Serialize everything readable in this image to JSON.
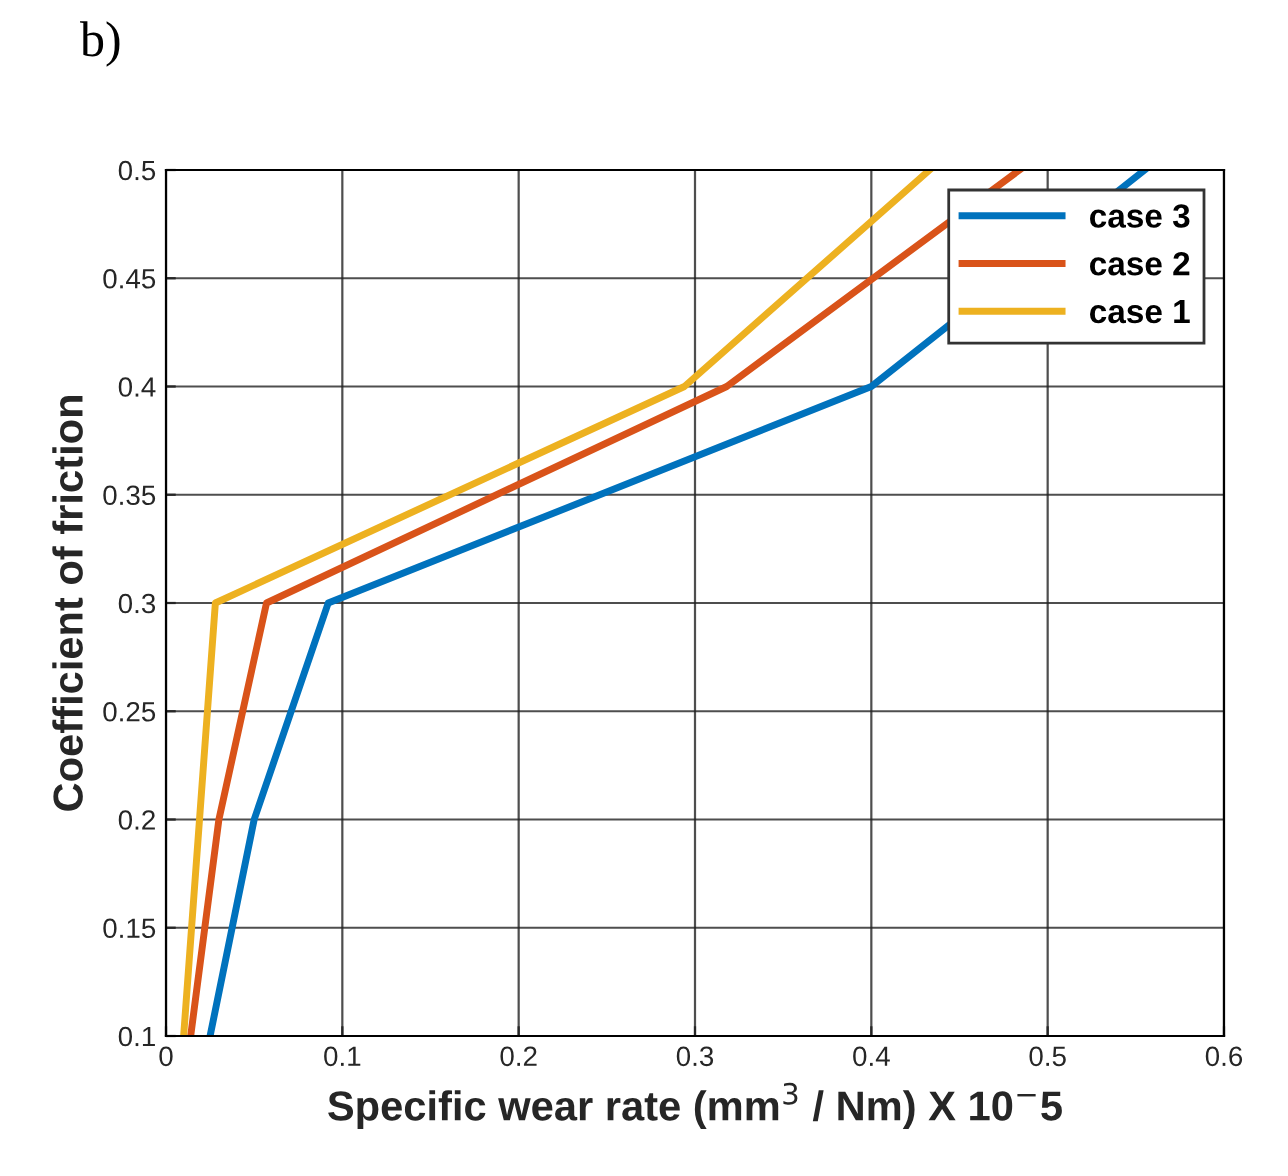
{
  "chart_data": {
    "type": "line",
    "title": "b)",
    "xlabel": "Specific wear rate (mm$^{3}$ / Nm) X 10$^{−}$5",
    "ylabel": "Coefficient of friction",
    "series": [
      {
        "name": "case 3",
        "color": "#0072bd",
        "x": [
          0.025,
          0.05,
          0.092,
          0.4,
          0.555
        ],
        "values": [
          0.1,
          0.2,
          0.3,
          0.4,
          0.5
        ]
      },
      {
        "name": "case 2",
        "color": "#d95319",
        "x": [
          0.014,
          0.03,
          0.057,
          0.318,
          0.484
        ],
        "values": [
          0.1,
          0.2,
          0.3,
          0.4,
          0.5
        ]
      },
      {
        "name": "case 1",
        "color": "#edb120",
        "x": [
          0.01,
          0.019,
          0.028,
          0.294,
          0.433
        ],
        "values": [
          0.1,
          0.2,
          0.3,
          0.4,
          0.5
        ]
      }
    ],
    "xlim": [
      0,
      0.6
    ],
    "xticks": [
      0,
      0.1,
      0.2,
      0.3,
      0.4,
      0.5,
      0.6
    ],
    "ylim": [
      0.1,
      0.5
    ],
    "yticks": [
      0.1,
      0.15,
      0.2,
      0.25,
      0.3,
      0.35,
      0.4,
      0.45,
      0.5
    ],
    "grid": true,
    "legend": "top right",
    "line_style": "solid",
    "marker": "none"
  }
}
